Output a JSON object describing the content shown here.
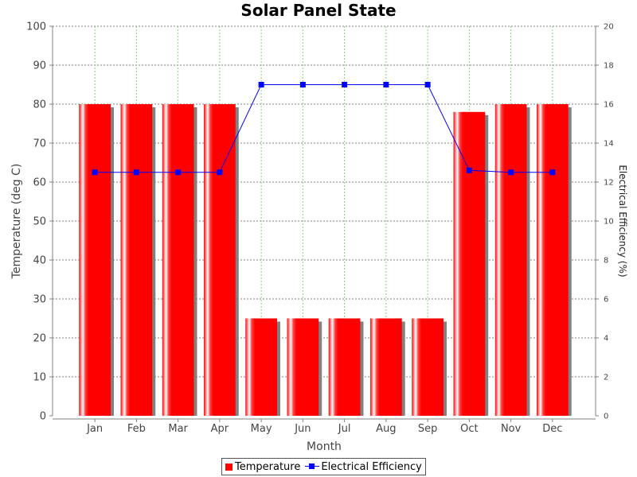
{
  "chart_data": {
    "type": "bar",
    "title": "Solar Panel State",
    "xlabel": "Month",
    "ylabel": "Temperature (deg C)",
    "y2label": "Electrical Efficiency (%)",
    "categories": [
      "Jan",
      "Feb",
      "Mar",
      "Apr",
      "May",
      "Jun",
      "Jul",
      "Aug",
      "Sep",
      "Oct",
      "Nov",
      "Dec"
    ],
    "ylim": [
      0,
      100
    ],
    "y2lim": [
      0,
      20
    ],
    "yticks": [
      "0",
      "10",
      "20",
      "30",
      "40",
      "50",
      "60",
      "70",
      "80",
      "90",
      "100"
    ],
    "y2ticks": [
      "0",
      "2",
      "4",
      "6",
      "8",
      "10",
      "12",
      "14",
      "16",
      "18",
      "20"
    ],
    "grid": true,
    "legend_position": "bottom",
    "series": [
      {
        "name": "Temperature",
        "type": "bar",
        "axis": "left",
        "color": "#ff0000",
        "values": [
          80,
          80,
          80,
          80,
          25,
          25,
          25,
          25,
          25,
          78,
          80,
          80
        ]
      },
      {
        "name": "Electrical Efficiency",
        "type": "line",
        "axis": "right",
        "color": "#0000ff",
        "values": [
          12.5,
          12.5,
          12.5,
          12.5,
          17,
          17,
          17,
          17,
          17,
          12.6,
          12.5,
          12.5
        ]
      }
    ]
  }
}
